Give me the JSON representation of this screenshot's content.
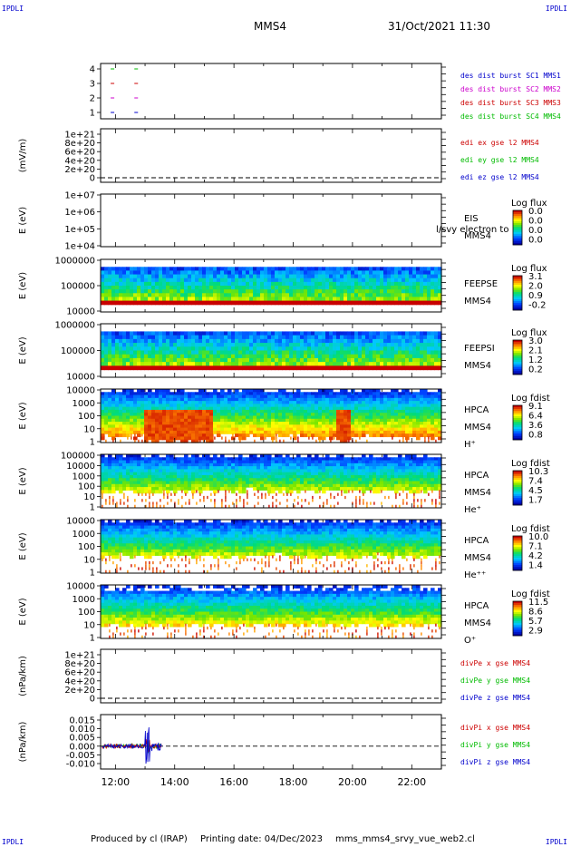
{
  "header": {
    "corner_label": "IPDLI",
    "spacecraft": "MMS4",
    "datetime": "31/Oct/2021 11:30"
  },
  "footer": {
    "produced_by": "Produced by cl (IRAP)",
    "printing_date": "Printing date: 04/Dec/2023",
    "source": "mms_mms4_srvy_vue_web2.cl"
  },
  "colors": {
    "mms1": "#0000cc",
    "mms2": "#cc00cc",
    "mms3": "#cc0000",
    "mms4": "#00bb00",
    "x_comp": "#cc0000",
    "y_comp": "#00bb00",
    "z_comp": "#0000cc"
  },
  "chart_data": [
    {
      "type": "line",
      "panel": "burst",
      "ylabel": "",
      "yticks": [
        "4",
        "3",
        "2",
        "1"
      ],
      "ylim": [
        0.5,
        4.5
      ],
      "legend": [
        "des dist burst SC1 MMS1",
        "des dist burst SC2 MMS2",
        "des dist burst SC3 MMS3",
        "des dist burst SC4 MMS4"
      ],
      "series": [
        {
          "name": "des dist burst SC1 MMS1",
          "values": [
            [
              11.9,
              1
            ],
            [
              12.7,
              1
            ]
          ]
        },
        {
          "name": "des dist burst SC2 MMS2",
          "values": [
            [
              11.9,
              2
            ],
            [
              12.7,
              2
            ]
          ]
        },
        {
          "name": "des dist burst SC3 MMS3",
          "values": [
            [
              11.9,
              3
            ],
            [
              12.7,
              3
            ]
          ]
        },
        {
          "name": "des dist burst SC4 MMS4",
          "values": [
            [
              11.9,
              4
            ],
            [
              12.7,
              4
            ]
          ]
        }
      ]
    },
    {
      "type": "line",
      "panel": "edi",
      "ylabel": "(mV/m)",
      "yticks": [
        "1e+21",
        "8e+20",
        "6e+20",
        "4e+20",
        "2e+20",
        "0"
      ],
      "legend": [
        "edi ex gse l2 MMS4",
        "edi ey gse l2 MMS4",
        "edi ez gse l2 MMS4"
      ]
    },
    {
      "type": "heatmap",
      "panel": "eis",
      "ylabel": "E (eV)",
      "yticks": [
        "1e+07",
        "1e+06",
        "1e+05",
        "1e+04"
      ],
      "side_labels": [
        "EIS",
        "MMS4"
      ],
      "overlay_text": "l/svy electron to",
      "colorbar": {
        "title": "Log flux",
        "ticks": [
          "0.0",
          "0.0",
          "0.0",
          "0.0"
        ]
      }
    },
    {
      "type": "heatmap",
      "panel": "feepse",
      "ylabel": "E (eV)",
      "yticks": [
        "1000000",
        "100000",
        "10000"
      ],
      "side_labels": [
        "FEEPSE",
        "MMS4"
      ],
      "colorbar": {
        "title": "Log flux",
        "ticks": [
          "3.1",
          "2.0",
          "0.9",
          "-0.2"
        ]
      }
    },
    {
      "type": "heatmap",
      "panel": "feepsi",
      "ylabel": "E (eV)",
      "yticks": [
        "1000000",
        "100000",
        "10000"
      ],
      "side_labels": [
        "FEEPSI",
        "MMS4"
      ],
      "colorbar": {
        "title": "Log flux",
        "ticks": [
          "3.0",
          "2.1",
          "1.2",
          "0.2"
        ]
      }
    },
    {
      "type": "heatmap",
      "panel": "hpca_h",
      "ylabel": "E (eV)",
      "yticks": [
        "10000",
        "1000",
        "100",
        "10",
        "1"
      ],
      "side_labels": [
        "HPCA",
        "MMS4",
        "H⁺"
      ],
      "colorbar": {
        "title": "Log fdist",
        "ticks": [
          "9.1",
          "6.4",
          "3.6",
          "0.8"
        ]
      }
    },
    {
      "type": "heatmap",
      "panel": "hpca_he",
      "ylabel": "E (eV)",
      "yticks": [
        "100000",
        "10000",
        "1000",
        "100",
        "10",
        "1"
      ],
      "side_labels": [
        "HPCA",
        "MMS4",
        "He⁺"
      ],
      "colorbar": {
        "title": "Log fdist",
        "ticks": [
          "10.3",
          "7.4",
          "4.5",
          "1.7"
        ]
      }
    },
    {
      "type": "heatmap",
      "panel": "hpca_hepp",
      "ylabel": "E (eV)",
      "yticks": [
        "10000",
        "1000",
        "100",
        "10",
        "1"
      ],
      "side_labels": [
        "HPCA",
        "MMS4",
        "He⁺⁺"
      ],
      "colorbar": {
        "title": "Log fdist",
        "ticks": [
          "10.0",
          "7.1",
          "4.2",
          "1.4"
        ]
      }
    },
    {
      "type": "heatmap",
      "panel": "hpca_o",
      "ylabel": "E (eV)",
      "yticks": [
        "10000",
        "1000",
        "100",
        "10",
        "1"
      ],
      "side_labels": [
        "HPCA",
        "MMS4",
        "O⁺"
      ],
      "colorbar": {
        "title": "Log fdist",
        "ticks": [
          "11.5",
          "8.6",
          "5.7",
          "2.9"
        ]
      }
    },
    {
      "type": "line",
      "panel": "divpe",
      "ylabel": "(nPa/km)",
      "yticks": [
        "1e+21",
        "8e+20",
        "6e+20",
        "4e+20",
        "2e+20",
        "0"
      ],
      "legend": [
        "divPe x gse MMS4",
        "divPe y gse MMS4",
        "divPe z gse MMS4"
      ]
    },
    {
      "type": "line",
      "panel": "divpi",
      "ylabel": "(nPa/km)",
      "yticks": [
        "0.015",
        "0.010",
        "0.005",
        "0.000",
        "-0.005",
        "-0.010"
      ],
      "ylim": [
        -0.012,
        0.016
      ],
      "legend": [
        "divPi x gse MMS4",
        "divPi y gse MMS4",
        "divPi z gse MMS4"
      ],
      "xlabels": [
        "12:00",
        "14:00",
        "16:00",
        "18:00",
        "20:00",
        "22:00"
      ]
    }
  ]
}
